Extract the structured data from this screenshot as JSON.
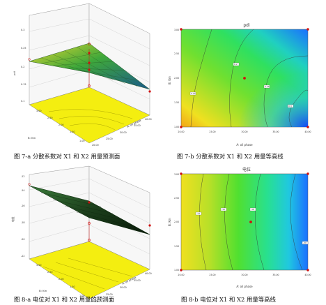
{
  "figures": [
    {
      "id": "7a",
      "caption": "图 7-a 分散系数对 X1 和 X2 用量预测面",
      "zlabel": "pdi",
      "xlabel": "A: oil phase",
      "ylabel": "B: Km",
      "x_ticks": [
        "20.00",
        "25.00",
        "30.00",
        "35.00",
        "40.00"
      ],
      "y_ticks": [
        "1.00",
        "1.50",
        "2.00",
        "2.50",
        "3.00"
      ],
      "z_ticks": [
        "0.1",
        "0.15",
        "0.2",
        "0.25",
        "0.3"
      ]
    },
    {
      "id": "7b",
      "caption": "图 7-b 分散系数对 X1 和 X2 用量等高线",
      "title": "pdi",
      "xlabel": "A: oil phase",
      "ylabel": "B: Km",
      "x_ticks": [
        "20.00",
        "25.00",
        "30.00",
        "35.00",
        "40.00"
      ],
      "y_ticks": [
        "1.00",
        "1.50",
        "2.00",
        "2.50",
        "3.00"
      ],
      "contour_labels": [
        "0.15",
        "0.2",
        "0.25",
        "0.3"
      ]
    },
    {
      "id": "8a",
      "caption": "图 8-a 电位对 X1 和 X2 用量的预测面",
      "zlabel": "电位",
      "xlabel": "A: oil phase",
      "ylabel": "B: Km",
      "x_ticks": [
        "20.00",
        "25.00",
        "30.00",
        "35.00",
        "40.00"
      ],
      "y_ticks": [
        "1.00",
        "1.50",
        "2.00",
        "2.50",
        "3.00"
      ],
      "z_ticks": [
        "-12",
        "-14",
        "-16",
        "-18",
        "-20",
        "-22"
      ]
    },
    {
      "id": "8b",
      "caption": "图 8-b 电位对 X1 和 X2 用量等高线",
      "title": "电位",
      "xlabel": "A: oil phase",
      "ylabel": "B: Km",
      "x_ticks": [
        "20.00",
        "25.00",
        "30.00",
        "35.00",
        "40.00"
      ],
      "y_ticks": [
        "1.00",
        "1.50",
        "2.00",
        "2.50",
        "3.00"
      ],
      "contour_labels": [
        "-14",
        "-16",
        "-18",
        "-20"
      ]
    }
  ],
  "colors": {
    "floor": "#f4ee10",
    "surface_green": "#2f8f2a",
    "contour_warm": "#e8dc10",
    "contour_mid": "#40e030",
    "contour_cool": "#1060ff",
    "design_point": "#d01010"
  }
}
